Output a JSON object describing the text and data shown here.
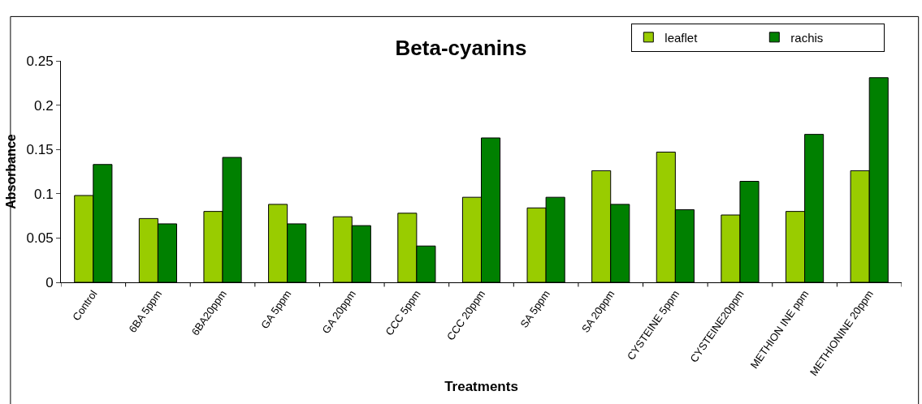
{
  "chart_data": {
    "type": "bar",
    "title": "Beta-cyanins",
    "xlabel": "Treatments",
    "ylabel": "Absorbance",
    "categories": [
      "Control",
      "6BA 5ppm",
      "6BA20ppm",
      "GA 5ppm",
      "GA 20ppm",
      "CCC 5ppm",
      "CCC 20ppm",
      "SA 5ppm",
      "SA 20ppm",
      "CYSTEINE 5ppm",
      "CYSTEINE20ppm",
      "METHION INE ppm",
      "METHIONINE 20ppm"
    ],
    "series": [
      {
        "name": "leaflet",
        "color": "#99cc00",
        "values": [
          0.098,
          0.072,
          0.08,
          0.088,
          0.074,
          0.078,
          0.096,
          0.084,
          0.126,
          0.147,
          0.076,
          0.08,
          0.126
        ]
      },
      {
        "name": "rachis",
        "color": "#008000",
        "values": [
          0.133,
          0.066,
          0.141,
          0.066,
          0.064,
          0.041,
          0.163,
          0.096,
          0.088,
          0.082,
          0.114,
          0.167,
          0.231
        ]
      }
    ],
    "ylim": [
      0,
      0.25
    ],
    "yticks": [
      0,
      0.05,
      0.1,
      0.15,
      0.2,
      0.25
    ],
    "grid": false,
    "legend": "top right"
  }
}
